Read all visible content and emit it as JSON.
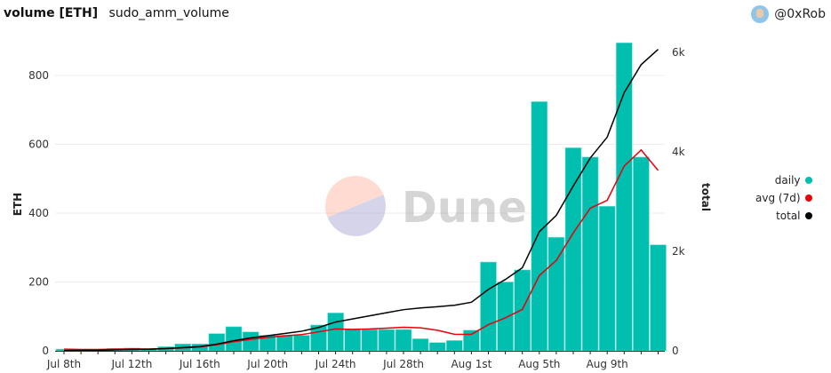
{
  "header": {
    "title": "volume [ETH]",
    "subtitle": "sudo_amm_volume",
    "user": "@0xRob"
  },
  "watermark": "Dune",
  "colors": {
    "daily": "#00bfae",
    "avg": "#e8000b",
    "total": "#000000"
  },
  "chart_data": {
    "type": "bar+line",
    "xlabel": "",
    "ylabel": "ETH",
    "y2label": "total",
    "ylim": [
      0,
      900
    ],
    "y2lim": [
      0,
      6300
    ],
    "yticks": [
      "0",
      "200",
      "400",
      "600",
      "800"
    ],
    "y2ticks": [
      "0",
      "2k",
      "4k",
      "6k"
    ],
    "xticks": [
      "Jul 8th",
      "Jul 12th",
      "Jul 16th",
      "Jul 20th",
      "Jul 24th",
      "Jul 28th",
      "Aug 1st",
      "Aug 5th",
      "Aug 9th"
    ],
    "grid": true,
    "legend": "right",
    "x": [
      "Jul 8",
      "Jul 9",
      "Jul 10",
      "Jul 11",
      "Jul 12",
      "Jul 13",
      "Jul 14",
      "Jul 15",
      "Jul 16",
      "Jul 17",
      "Jul 18",
      "Jul 19",
      "Jul 20",
      "Jul 21",
      "Jul 22",
      "Jul 23",
      "Jul 24",
      "Jul 25",
      "Jul 26",
      "Jul 27",
      "Jul 28",
      "Jul 29",
      "Jul 30",
      "Jul 31",
      "Aug 1",
      "Aug 2",
      "Aug 3",
      "Aug 4",
      "Aug 5",
      "Aug 6",
      "Aug 7",
      "Aug 8",
      "Aug 9",
      "Aug 10",
      "Aug 11",
      "Aug 12"
    ],
    "series": [
      {
        "name": "daily",
        "type": "bar",
        "axis": "left",
        "values": [
          5,
          3,
          4,
          7,
          8,
          5,
          12,
          20,
          20,
          50,
          70,
          55,
          45,
          45,
          45,
          75,
          110,
          62,
          62,
          62,
          62,
          35,
          24,
          30,
          60,
          258,
          200,
          235,
          724,
          330,
          590,
          563,
          420,
          895,
          563,
          308
        ]
      },
      {
        "name": "avg (7d)",
        "type": "line",
        "axis": "left",
        "values": [
          5,
          4,
          4,
          4.8,
          5.4,
          5.3,
          6.3,
          8.4,
          10.9,
          17.4,
          26.4,
          33.1,
          38.9,
          43.6,
          47.1,
          55,
          63.6,
          62.4,
          63.4,
          65.9,
          68.3,
          66.9,
          59.6,
          48.1,
          47.9,
          75.9,
          95.6,
          120.3,
          218.7,
          262.4,
          342.4,
          414.3,
          437.4,
          536.7,
          583.6,
          524.1
        ]
      },
      {
        "name": "total",
        "type": "line",
        "axis": "right",
        "values": [
          5,
          8,
          12,
          19,
          27,
          32,
          44,
          64,
          84,
          134,
          204,
          259,
          304,
          349,
          394,
          469,
          579,
          641,
          703,
          765,
          827,
          862,
          886,
          916,
          976,
          1234,
          1434,
          1669,
          2393,
          2723,
          3313,
          3876,
          4296,
          5191,
          5754,
          6062
        ]
      }
    ]
  }
}
